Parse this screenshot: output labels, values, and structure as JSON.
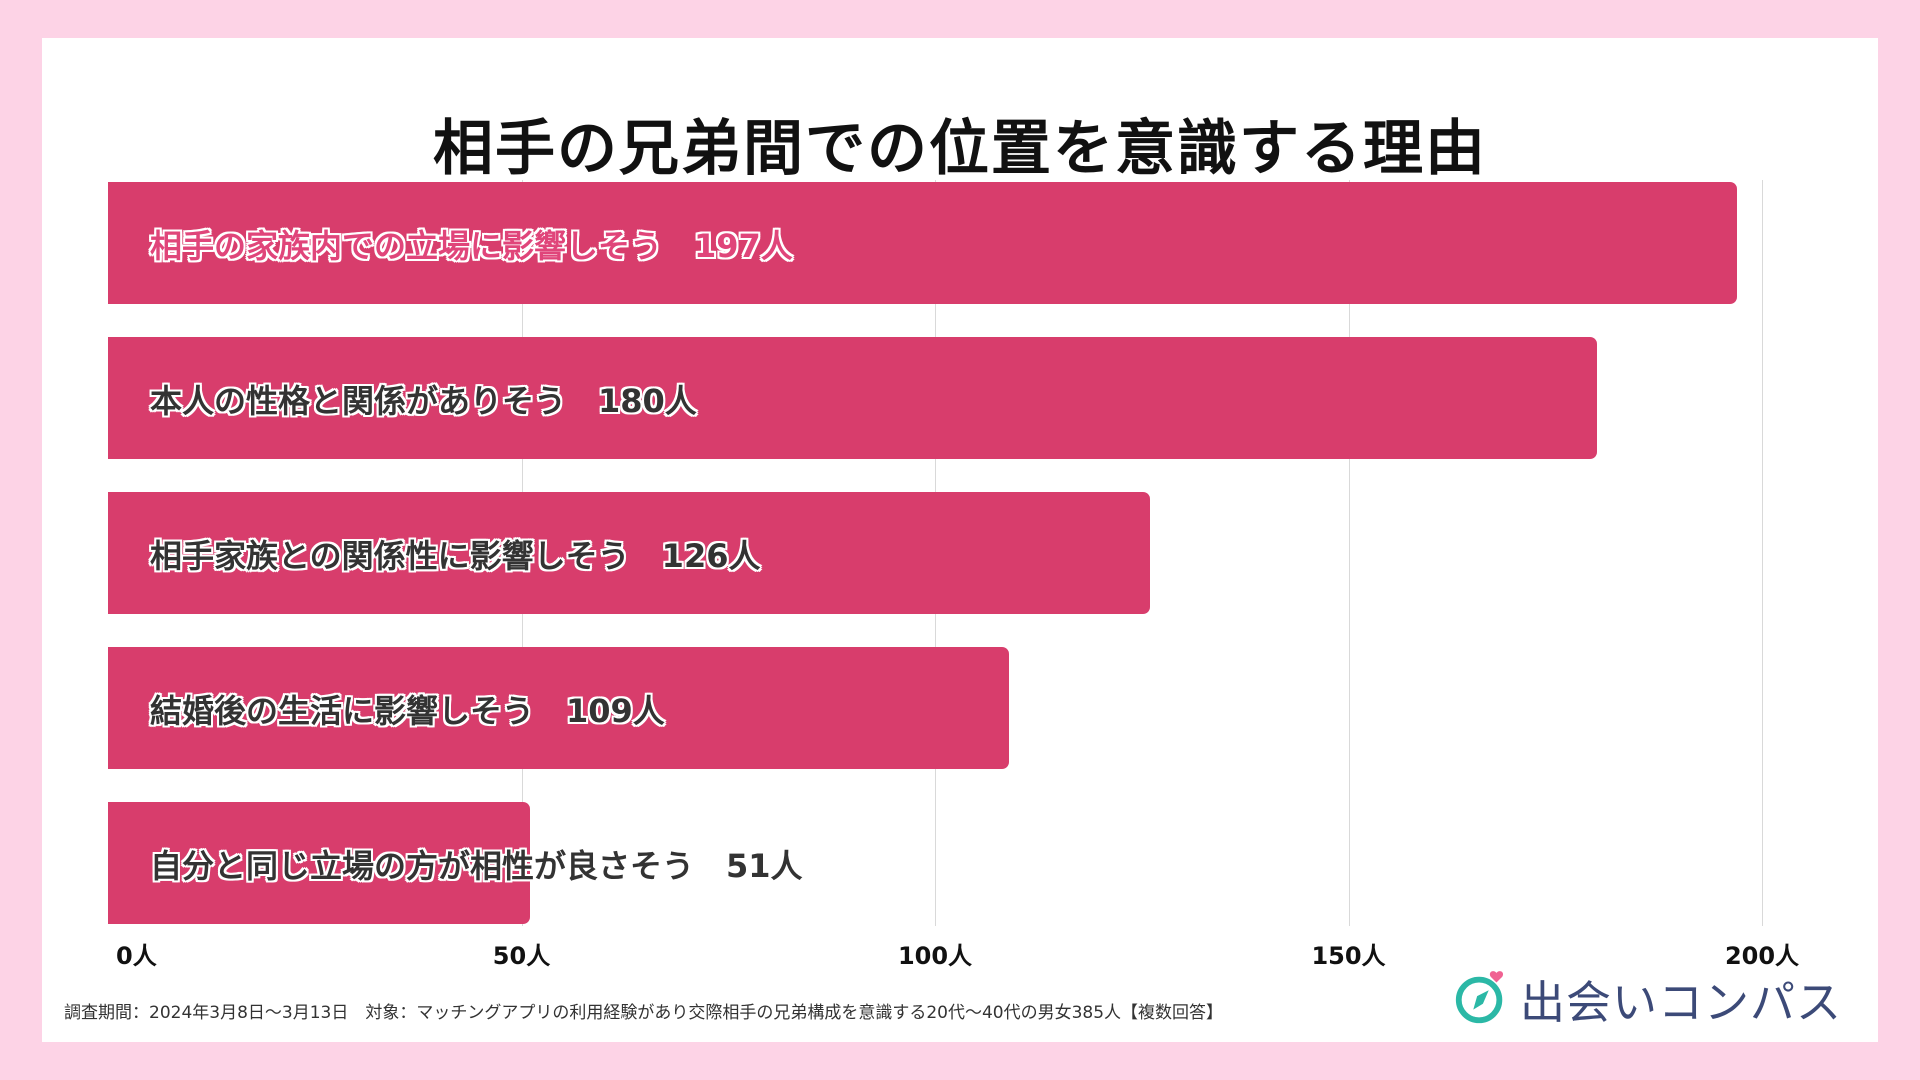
{
  "chart_data": {
    "type": "bar",
    "orientation": "horizontal",
    "title": "相手の兄弟間での位置を意識する理由",
    "unit": "人",
    "categories": [
      "相手の家族内での立場に影響しそう",
      "本人の性格と関係がありそう",
      "相手家族との関係性に影響しそう",
      "結婚後の生活に影響しそう",
      "自分と同じ立場の方が相性が良さそう"
    ],
    "values": [
      197,
      180,
      126,
      109,
      51
    ],
    "value_labels": [
      "197人",
      "180人",
      "126人",
      "109人",
      "51人"
    ],
    "xlim": [
      0,
      200
    ],
    "ticks": [
      0,
      50,
      100,
      150,
      200
    ],
    "tick_labels": [
      "0人",
      "50人",
      "100人",
      "150人",
      "200人"
    ],
    "grid": true,
    "bar_color": "#d83d6c",
    "highlight_label_color": "#e0457a"
  },
  "footnote": "調査期間：2024年3月8日〜3月13日　対象：マッチングアプリの利用経験があり交際相手の兄弟構成を意識する20代〜40代の男女385人【複数回答】",
  "brand": {
    "name": "出会いコンパス",
    "icon": "compass-heart-icon",
    "text_color": "#3c4a78",
    "ring_color": "#2bb8a6",
    "heart_color": "#f06292"
  },
  "background_color": "#fdd3e6"
}
